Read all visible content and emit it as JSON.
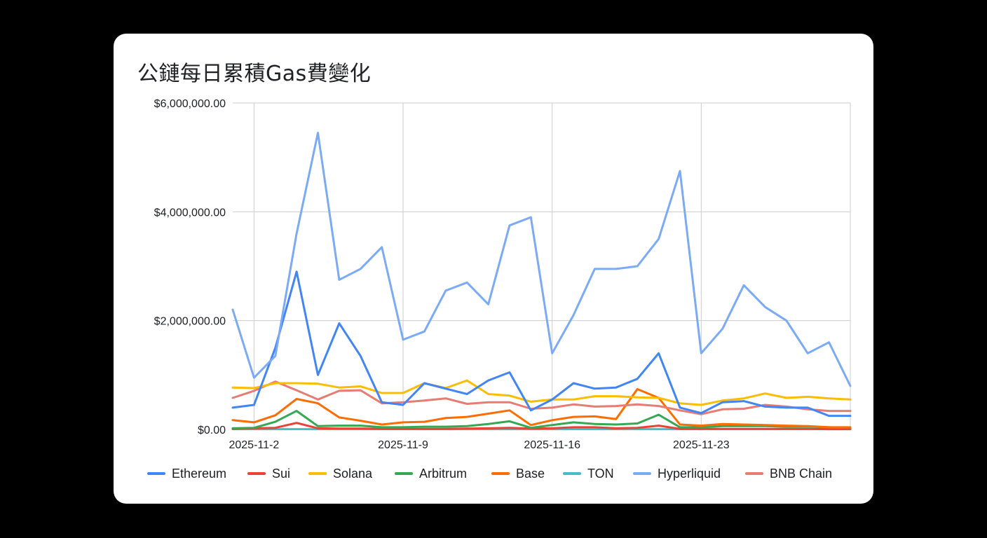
{
  "chart_data": {
    "type": "line",
    "title": "公鏈每日累積Gas費變化",
    "xlabel": "",
    "ylabel": "",
    "ylim": [
      0,
      6000000
    ],
    "yticks": [
      0,
      2000000,
      4000000,
      6000000
    ],
    "ytick_labels": [
      "$0.00",
      "$2,000,000.00",
      "$4,000,000.00",
      "$6,000,000.00"
    ],
    "x": [
      "2025-11-1",
      "2025-11-2",
      "2025-11-3",
      "2025-11-4",
      "2025-11-5",
      "2025-11-6",
      "2025-11-7",
      "2025-11-8",
      "2025-11-9",
      "2025-11-10",
      "2025-11-11",
      "2025-11-12",
      "2025-11-13",
      "2025-11-14",
      "2025-11-15",
      "2025-11-16",
      "2025-11-17",
      "2025-11-18",
      "2025-11-19",
      "2025-11-20",
      "2025-11-21",
      "2025-11-22",
      "2025-11-23",
      "2025-11-24",
      "2025-11-25",
      "2025-11-26",
      "2025-11-27",
      "2025-11-28",
      "2025-11-29",
      "2025-11-30"
    ],
    "xtick_labels": [
      "2025-11-2",
      "2025-11-9",
      "2025-11-16",
      "2025-11-23"
    ],
    "grid": true,
    "legend_position": "bottom",
    "series": [
      {
        "name": "Ethereum",
        "color": "#4285f4",
        "values": [
          400000,
          450000,
          1500000,
          2900000,
          1000000,
          1950000,
          1350000,
          500000,
          450000,
          850000,
          750000,
          650000,
          900000,
          1050000,
          350000,
          550000,
          850000,
          750000,
          770000,
          930000,
          1400000,
          400000,
          300000,
          500000,
          520000,
          420000,
          400000,
          400000,
          250000,
          250000
        ]
      },
      {
        "name": "Sui",
        "color": "#ea4335",
        "values": [
          10000,
          20000,
          30000,
          120000,
          20000,
          15000,
          15000,
          10000,
          10000,
          10000,
          10000,
          15000,
          20000,
          30000,
          15000,
          20000,
          40000,
          40000,
          20000,
          30000,
          70000,
          10000,
          10000,
          10000,
          10000,
          10000,
          10000,
          10000,
          5000,
          5000
        ]
      },
      {
        "name": "Solana",
        "color": "#fbbc04",
        "values": [
          770000,
          760000,
          850000,
          850000,
          840000,
          770000,
          790000,
          670000,
          670000,
          850000,
          760000,
          900000,
          650000,
          620000,
          510000,
          550000,
          550000,
          610000,
          610000,
          590000,
          580000,
          480000,
          450000,
          530000,
          570000,
          660000,
          580000,
          600000,
          570000,
          550000
        ]
      },
      {
        "name": "Arbitrum",
        "color": "#34a853",
        "values": [
          20000,
          30000,
          140000,
          340000,
          60000,
          70000,
          70000,
          40000,
          40000,
          50000,
          50000,
          60000,
          100000,
          150000,
          30000,
          80000,
          130000,
          100000,
          90000,
          110000,
          270000,
          40000,
          40000,
          60000,
          60000,
          60000,
          50000,
          50000,
          40000,
          30000
        ]
      },
      {
        "name": "Base",
        "color": "#ff6d01",
        "values": [
          170000,
          130000,
          260000,
          560000,
          480000,
          220000,
          160000,
          90000,
          130000,
          140000,
          210000,
          230000,
          290000,
          350000,
          80000,
          170000,
          230000,
          240000,
          190000,
          740000,
          580000,
          90000,
          70000,
          100000,
          90000,
          80000,
          70000,
          60000,
          40000,
          40000
        ]
      },
      {
        "name": "TON",
        "color": "#46bdc6",
        "values": [
          5000,
          5000,
          5000,
          5000,
          5000,
          5000,
          5000,
          5000,
          5000,
          5000,
          5000,
          5000,
          5000,
          5000,
          5000,
          5000,
          5000,
          5000,
          5000,
          5000,
          5000,
          5000,
          5000,
          5000,
          5000,
          5000,
          5000,
          5000,
          5000,
          5000
        ]
      },
      {
        "name": "Hyperliquid",
        "color": "#7baaf7",
        "values": [
          2200000,
          950000,
          1350000,
          3600000,
          5450000,
          2750000,
          2950000,
          3350000,
          1650000,
          1800000,
          2550000,
          2700000,
          2300000,
          3750000,
          3900000,
          1400000,
          2100000,
          2950000,
          2950000,
          3000000,
          3500000,
          4750000,
          1400000,
          1850000,
          2650000,
          2250000,
          2000000,
          1400000,
          1600000,
          800000
        ]
      },
      {
        "name": "BNB Chain",
        "color": "#e67c73",
        "values": [
          580000,
          710000,
          880000,
          720000,
          550000,
          710000,
          720000,
          480000,
          500000,
          530000,
          570000,
          470000,
          500000,
          500000,
          380000,
          400000,
          460000,
          420000,
          430000,
          460000,
          430000,
          350000,
          280000,
          370000,
          380000,
          450000,
          420000,
          370000,
          340000,
          340000
        ]
      }
    ]
  }
}
